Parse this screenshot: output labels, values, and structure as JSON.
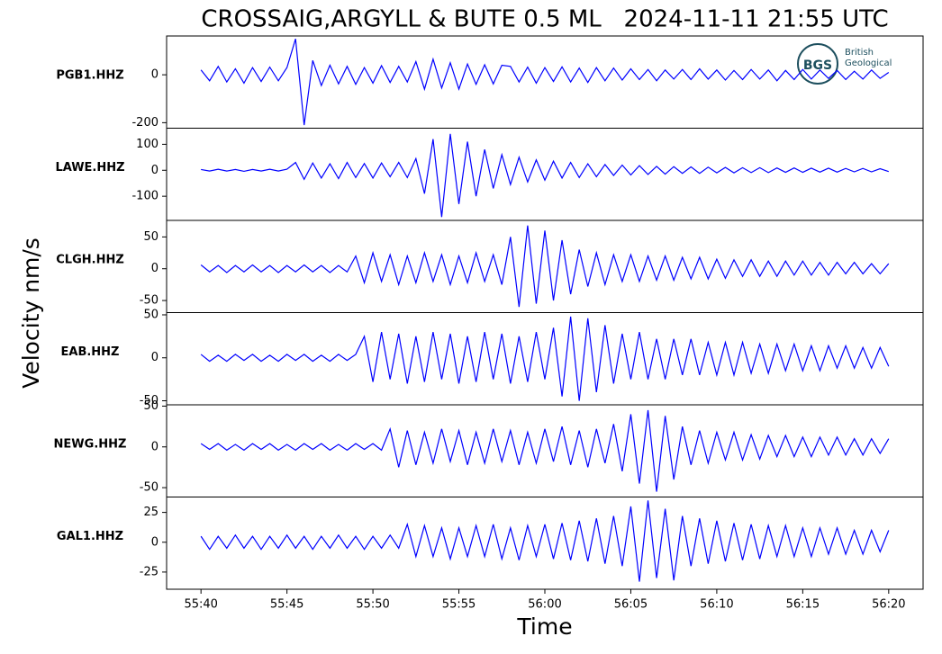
{
  "chart_data": {
    "type": "line",
    "title": "CROSSAIG,ARGYLL & BUTE 0.5 ML   2024-11-11 21:55 UTC",
    "xlabel": "Time",
    "ylabel": "Velocity nm/s",
    "logo_text": [
      "BGS",
      "British",
      "Geological"
    ],
    "xlim": [
      3338,
      3382
    ],
    "xticks": [
      {
        "value": 3340,
        "label": "55:40"
      },
      {
        "value": 3345,
        "label": "55:45"
      },
      {
        "value": 3350,
        "label": "55:50"
      },
      {
        "value": 3355,
        "label": "55:55"
      },
      {
        "value": 3360,
        "label": "56:00"
      },
      {
        "value": 3365,
        "label": "56:05"
      },
      {
        "value": 3370,
        "label": "56:10"
      },
      {
        "value": 3375,
        "label": "56:15"
      },
      {
        "value": 3380,
        "label": "56:20"
      }
    ],
    "x": [
      3340,
      3340.5,
      3341,
      3341.5,
      3342,
      3342.5,
      3343,
      3343.5,
      3344,
      3344.5,
      3345,
      3345.5,
      3346,
      3346.5,
      3347,
      3347.5,
      3348,
      3348.5,
      3349,
      3349.5,
      3350,
      3350.5,
      3351,
      3351.5,
      3352,
      3352.5,
      3353,
      3353.5,
      3354,
      3354.5,
      3355,
      3355.5,
      3356,
      3356.5,
      3357,
      3357.5,
      3358,
      3358.5,
      3359,
      3359.5,
      3360,
      3360.5,
      3361,
      3361.5,
      3362,
      3362.5,
      3363,
      3363.5,
      3364,
      3364.5,
      3365,
      3365.5,
      3366,
      3366.5,
      3367,
      3367.5,
      3368,
      3368.5,
      3369,
      3369.5,
      3370,
      3370.5,
      3371,
      3371.5,
      3372,
      3372.5,
      3373,
      3373.5,
      3374,
      3374.5,
      3375,
      3375.5,
      3376,
      3376.5,
      3377,
      3377.5,
      3378,
      3378.5,
      3379,
      3379.5,
      3380
    ],
    "series": [
      {
        "name": "PGB1.HHZ",
        "color": "#0000ff",
        "ylim": [
          -223,
          162
        ],
        "yticks": [
          -200,
          0
        ],
        "values": [
          20,
          -25,
          35,
          -30,
          25,
          -35,
          30,
          -28,
          32,
          -25,
          30,
          150,
          -210,
          60,
          -45,
          40,
          -38,
          35,
          -40,
          30,
          -35,
          38,
          -32,
          35,
          -30,
          55,
          -60,
          65,
          -55,
          50,
          -60,
          45,
          -40,
          42,
          -38,
          40,
          35,
          -30,
          32,
          -35,
          30,
          -28,
          33,
          -30,
          28,
          -32,
          30,
          -25,
          28,
          -22,
          25,
          -20,
          22,
          -25,
          20,
          -18,
          22,
          -20,
          25,
          -18,
          20,
          -22,
          18,
          -20,
          22,
          -18,
          20,
          -25,
          18,
          -20,
          22,
          -18,
          20,
          -15,
          18,
          -20,
          15,
          -18,
          20,
          -15,
          10
        ]
      },
      {
        "name": "LAWE.HHZ",
        "color": "#0000ff",
        "ylim": [
          -193,
          162
        ],
        "yticks": [
          -100,
          0,
          100
        ],
        "values": [
          3,
          -3,
          4,
          -3,
          3,
          -4,
          3,
          -3,
          4,
          -3,
          4,
          30,
          -35,
          28,
          -30,
          25,
          -32,
          30,
          -28,
          26,
          -30,
          28,
          -25,
          30,
          -28,
          45,
          -90,
          120,
          -180,
          140,
          -130,
          110,
          -100,
          80,
          -70,
          60,
          -55,
          50,
          -45,
          40,
          -38,
          35,
          -30,
          30,
          -28,
          25,
          -25,
          22,
          -20,
          20,
          -18,
          18,
          -16,
          15,
          -15,
          14,
          -12,
          13,
          -12,
          12,
          -10,
          11,
          -10,
          10,
          -9,
          10,
          -9,
          9,
          -8,
          9,
          -8,
          8,
          -7,
          8,
          -7,
          7,
          -6,
          7,
          -6,
          6,
          -5
        ]
      },
      {
        "name": "CLGH.HHZ",
        "color": "#0000ff",
        "ylim": [
          -69,
          76
        ],
        "yticks": [
          -50,
          0,
          50
        ],
        "values": [
          6,
          -5,
          5,
          -6,
          5,
          -5,
          6,
          -5,
          5,
          -6,
          5,
          -5,
          6,
          -5,
          5,
          -6,
          5,
          -5,
          20,
          -22,
          25,
          -20,
          22,
          -25,
          20,
          -22,
          25,
          -20,
          22,
          -25,
          20,
          -22,
          25,
          -20,
          22,
          -25,
          50,
          -60,
          68,
          -55,
          60,
          -50,
          45,
          -40,
          30,
          -28,
          25,
          -25,
          22,
          -20,
          22,
          -20,
          20,
          -18,
          20,
          -18,
          18,
          -16,
          18,
          -16,
          15,
          -15,
          14,
          -12,
          14,
          -12,
          12,
          -12,
          12,
          -10,
          12,
          -10,
          10,
          -10,
          10,
          -8,
          10,
          -8,
          8,
          -8,
          8
        ]
      },
      {
        "name": "EAB.HHZ",
        "color": "#0000ff",
        "ylim": [
          -54.7,
          52.6
        ],
        "yticks": [
          -50,
          0,
          50
        ],
        "values": [
          4,
          -4,
          3,
          -4,
          4,
          -3,
          4,
          -4,
          3,
          -4,
          4,
          -3,
          4,
          -4,
          3,
          -4,
          4,
          -3,
          4,
          25,
          -28,
          30,
          -25,
          28,
          -30,
          25,
          -28,
          30,
          -25,
          28,
          -30,
          25,
          -28,
          30,
          -25,
          28,
          -30,
          25,
          -28,
          30,
          -25,
          35,
          -45,
          48,
          -50,
          46,
          -40,
          38,
          -30,
          28,
          -25,
          30,
          -25,
          22,
          -25,
          22,
          -20,
          22,
          -20,
          18,
          -20,
          18,
          -20,
          18,
          -18,
          16,
          -18,
          16,
          -15,
          16,
          -15,
          14,
          -15,
          14,
          -12,
          14,
          -12,
          12,
          -12,
          12,
          -10
        ]
      },
      {
        "name": "NEWG.HHZ",
        "color": "#0000ff",
        "ylim": [
          -61.5,
          51.6
        ],
        "yticks": [
          -50,
          0,
          50
        ],
        "values": [
          4,
          -3,
          4,
          -4,
          3,
          -4,
          4,
          -3,
          4,
          -4,
          3,
          -4,
          4,
          -3,
          4,
          -4,
          3,
          -4,
          4,
          -3,
          4,
          -4,
          22,
          -25,
          20,
          -22,
          18,
          -20,
          22,
          -18,
          20,
          -22,
          18,
          -20,
          22,
          -18,
          20,
          -22,
          18,
          -20,
          22,
          -18,
          25,
          -22,
          20,
          -25,
          22,
          -20,
          28,
          -30,
          40,
          -45,
          45,
          -55,
          38,
          -40,
          25,
          -22,
          20,
          -20,
          18,
          -16,
          18,
          -16,
          15,
          -15,
          14,
          -12,
          14,
          -12,
          12,
          -12,
          12,
          -10,
          12,
          -10,
          10,
          -10,
          10,
          -8,
          10
        ]
      },
      {
        "name": "GAL1.HHZ",
        "color": "#0000ff",
        "ylim": [
          -39.4,
          37.9
        ],
        "yticks": [
          -25,
          0,
          25
        ],
        "values": [
          5,
          -6,
          5,
          -5,
          6,
          -5,
          5,
          -6,
          5,
          -5,
          6,
          -5,
          5,
          -6,
          5,
          -5,
          6,
          -5,
          5,
          -6,
          5,
          -5,
          6,
          -5,
          15,
          -12,
          14,
          -12,
          12,
          -14,
          12,
          -12,
          14,
          -12,
          15,
          -14,
          12,
          -15,
          14,
          -12,
          15,
          -14,
          16,
          -15,
          18,
          -16,
          20,
          -18,
          22,
          -20,
          30,
          -33,
          35,
          -30,
          28,
          -32,
          22,
          -20,
          20,
          -18,
          18,
          -16,
          16,
          -15,
          15,
          -14,
          14,
          -12,
          14,
          -12,
          12,
          -12,
          12,
          -10,
          12,
          -10,
          10,
          -10,
          10,
          -8,
          10
        ]
      }
    ]
  }
}
